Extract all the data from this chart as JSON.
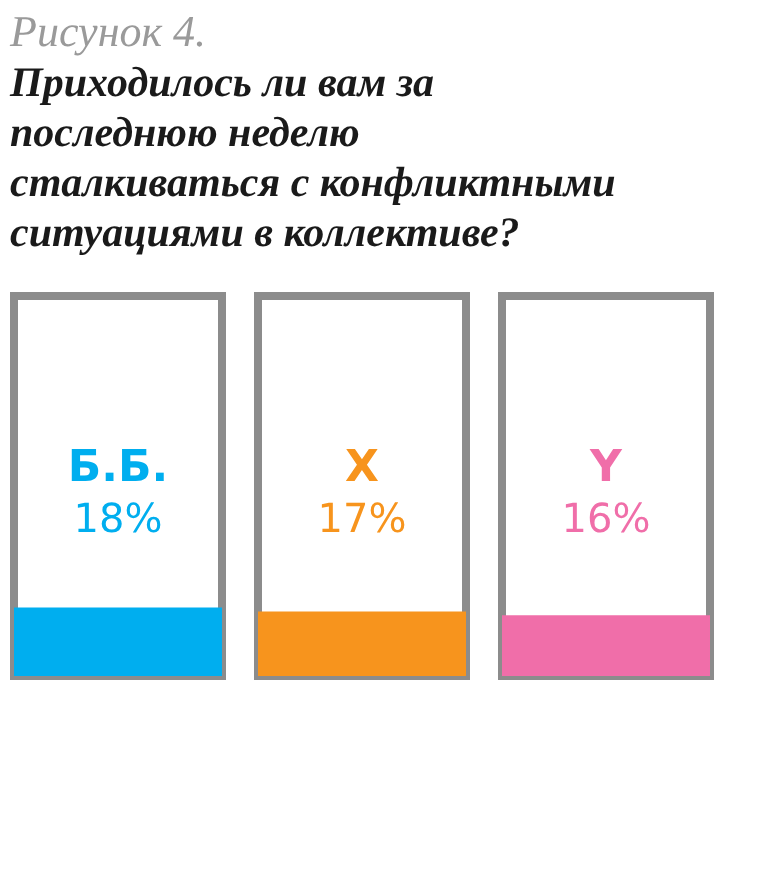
{
  "chart_data": {
    "type": "bar",
    "title": "Рисунок 4.",
    "subtitle": "Приходилось ли вам за последнюю неделю сталкиваться с конфликтными ситуациями в коллективе?",
    "categories": [
      "Б.Б.",
      "X",
      "Y"
    ],
    "values": [
      18,
      17,
      16
    ],
    "value_labels": [
      "18%",
      "17%",
      "16%"
    ],
    "colors": [
      "#00aeef",
      "#f7941d",
      "#f06ea9"
    ],
    "ylim": [
      0,
      100
    ],
    "tick_labels": false
  }
}
